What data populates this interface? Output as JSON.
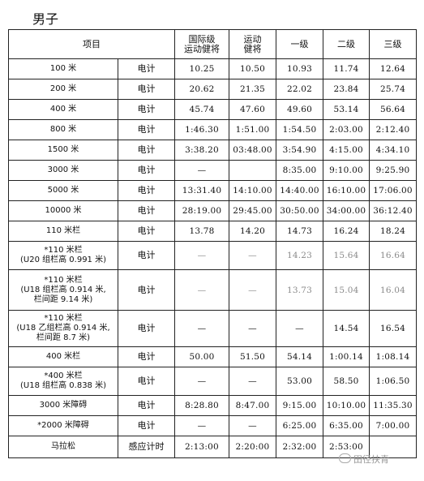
{
  "title": "男子",
  "headers": {
    "event": "项目",
    "intl_line1": "国际级",
    "intl_line2": "运动健将",
    "master_line1": "运动",
    "master_line2": "健将",
    "first": "一级",
    "second": "二级",
    "third": "三级"
  },
  "rows": [
    {
      "event": [
        "100 米"
      ],
      "timing": "电计",
      "values": [
        "10.25",
        "10.50",
        "10.93",
        "11.74",
        "12.64"
      ]
    },
    {
      "event": [
        "200 米"
      ],
      "timing": "电计",
      "values": [
        "20.62",
        "21.35",
        "22.02",
        "23.84",
        "25.74"
      ]
    },
    {
      "event": [
        "400 米"
      ],
      "timing": "电计",
      "values": [
        "45.74",
        "47.60",
        "49.60",
        "53.14",
        "56.64"
      ]
    },
    {
      "event": [
        "800 米"
      ],
      "timing": "电计",
      "values": [
        "1:46.30",
        "1:51.00",
        "1:54.50",
        "2:03.00",
        "2:12.40"
      ]
    },
    {
      "event": [
        "1500 米"
      ],
      "timing": "电计",
      "values": [
        "3:38.20",
        "03:48.00",
        "3:54.90",
        "4:15.00",
        "4:34.10"
      ]
    },
    {
      "event": [
        "3000 米"
      ],
      "timing": "电计",
      "values": [
        "—",
        "",
        "8:35.00",
        "9:10.00",
        "9:25.90"
      ]
    },
    {
      "event": [
        "5000 米"
      ],
      "timing": "电计",
      "values": [
        "13:31.40",
        "14:10.00",
        "14:40.00",
        "16:10.00",
        "17:06.00"
      ]
    },
    {
      "event": [
        "10000 米"
      ],
      "timing": "电计",
      "values": [
        "28:19.00",
        "29:45.00",
        "30:50.00",
        "34:00.00",
        "36:12.40"
      ]
    },
    {
      "event": [
        "110 米栏"
      ],
      "timing": "电计",
      "values": [
        "13.78",
        "14.20",
        "14.73",
        "16.24",
        "18.24"
      ]
    },
    {
      "event": [
        "*110 米栏",
        "(U20 组栏高 0.991 米)"
      ],
      "timing": "电计",
      "values": [
        "—",
        "—",
        "14.23",
        "15.64",
        "16.64"
      ],
      "faded": true
    },
    {
      "event": [
        "*110 米栏",
        "(U18 组栏高 0.914 米,",
        "栏间距 9.14 米)"
      ],
      "timing": "电计",
      "values": [
        "—",
        "—",
        "13.73",
        "15.04",
        "16.04"
      ],
      "faded": true
    },
    {
      "event": [
        "*110 米栏",
        "(U18 乙组栏高 0.914 米,",
        "栏间距 8.7 米)"
      ],
      "timing": "电计",
      "values": [
        "—",
        "—",
        "—",
        "14.54",
        "16.54"
      ]
    },
    {
      "event": [
        "400 米栏"
      ],
      "timing": "电计",
      "values": [
        "50.00",
        "51.50",
        "54.14",
        "1:00.14",
        "1:08.14"
      ]
    },
    {
      "event": [
        "*400 米栏",
        "(U18 组栏高 0.838 米)"
      ],
      "timing": "电计",
      "values": [
        "—",
        "—",
        "53.00",
        "58.50",
        "1:06.50"
      ]
    },
    {
      "event": [
        "3000 米障碍"
      ],
      "timing": "电计",
      "values": [
        "8:28.80",
        "8:47.00",
        "9:15.00",
        "10:10.00",
        "11:35.30"
      ]
    },
    {
      "event": [
        "*2000 米障碍"
      ],
      "timing": "电计",
      "values": [
        "—",
        "—",
        "6:25.00",
        "6:35.00",
        "7:00.00"
      ]
    },
    {
      "event": [
        "马拉松"
      ],
      "timing": "感应计时",
      "values": [
        "2:13:00",
        "2:20:00",
        "2:32:00",
        "2:53:00",
        ""
      ]
    }
  ],
  "watermark": "田径扶青"
}
